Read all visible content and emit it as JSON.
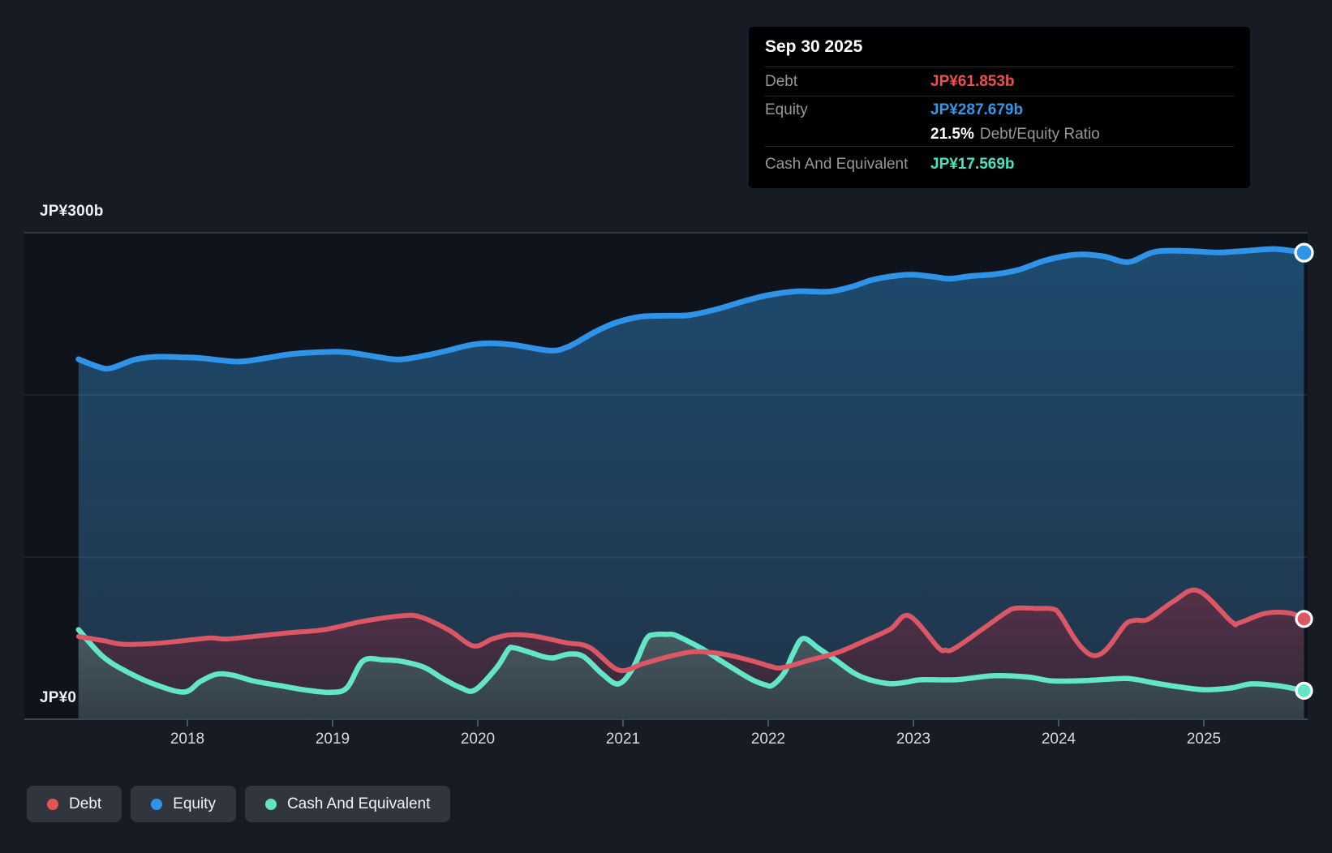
{
  "axis": {
    "y_top_label": "JP¥300b",
    "y_zero_label": "JP¥0",
    "x_labels": [
      "2018",
      "2019",
      "2020",
      "2021",
      "2022",
      "2023",
      "2024",
      "2025"
    ]
  },
  "tooltip": {
    "date": "Sep 30 2025",
    "debt_label": "Debt",
    "debt_value": "JP¥61.853b",
    "equity_label": "Equity",
    "equity_value": "JP¥287.679b",
    "ratio_value": "21.5%",
    "ratio_label": "Debt/Equity Ratio",
    "cash_label": "Cash And Equivalent",
    "cash_value": "JP¥17.569b",
    "colors": {
      "debt": "#f04f4f",
      "equity": "#2f9ae9",
      "cash": "#43e5c0"
    }
  },
  "legend": {
    "items": [
      {
        "label": "Debt",
        "color": "#e35454"
      },
      {
        "label": "Equity",
        "color": "#2f93e8"
      },
      {
        "label": "Cash And Equivalent",
        "color": "#5fe3c2"
      }
    ]
  },
  "chart_data": {
    "type": "area",
    "unit": "JP¥ billions",
    "x_range": [
      2017.25,
      2025.75
    ],
    "ylim": [
      0,
      300
    ],
    "x_ticks": [
      2018,
      2019,
      2020,
      2021,
      2022,
      2023,
      2024,
      2025
    ],
    "grid_values": [
      100,
      200,
      300
    ],
    "legend_position": "bottom-left",
    "series": [
      {
        "name": "Equity",
        "color": "#2f93e8",
        "end_label": "JP¥287.679b",
        "fill_top": "#1d4a6e",
        "fill_bottom": "#213549",
        "points": [
          [
            2017.25,
            222
          ],
          [
            2017.38,
            217.5
          ],
          [
            2017.47,
            216.4
          ],
          [
            2017.64,
            221.8
          ],
          [
            2017.79,
            223.5
          ],
          [
            2017.95,
            223.2
          ],
          [
            2018.09,
            222.7
          ],
          [
            2018.35,
            220.5
          ],
          [
            2018.54,
            222.7
          ],
          [
            2018.72,
            225.2
          ],
          [
            2018.97,
            226.5
          ],
          [
            2019.11,
            226.2
          ],
          [
            2019.3,
            223.5
          ],
          [
            2019.46,
            221.8
          ],
          [
            2019.65,
            224.5
          ],
          [
            2019.8,
            227.5
          ],
          [
            2019.95,
            230.8
          ],
          [
            2020.08,
            231.8
          ],
          [
            2020.25,
            230.8
          ],
          [
            2020.5,
            227.3
          ],
          [
            2020.63,
            230
          ],
          [
            2020.8,
            238.5
          ],
          [
            2020.95,
            244.5
          ],
          [
            2021.12,
            248.2
          ],
          [
            2021.3,
            248.8
          ],
          [
            2021.46,
            249.2
          ],
          [
            2021.64,
            252.7
          ],
          [
            2021.83,
            257.7
          ],
          [
            2022.0,
            261.5
          ],
          [
            2022.2,
            263.9
          ],
          [
            2022.42,
            263.7
          ],
          [
            2022.58,
            266.8
          ],
          [
            2022.72,
            271
          ],
          [
            2022.9,
            273.7
          ],
          [
            2023.0,
            274.1
          ],
          [
            2023.15,
            272.7
          ],
          [
            2023.25,
            271.6
          ],
          [
            2023.4,
            273.3
          ],
          [
            2023.55,
            274.3
          ],
          [
            2023.72,
            277
          ],
          [
            2023.9,
            282.7
          ],
          [
            2024.07,
            286
          ],
          [
            2024.18,
            286.6
          ],
          [
            2024.32,
            285.2
          ],
          [
            2024.48,
            281.9
          ],
          [
            2024.64,
            287.7
          ],
          [
            2024.76,
            288.9
          ],
          [
            2024.95,
            288.5
          ],
          [
            2025.1,
            287.8
          ],
          [
            2025.3,
            288.9
          ],
          [
            2025.5,
            289.9
          ],
          [
            2025.69,
            287.679
          ]
        ]
      },
      {
        "name": "Debt",
        "color": "#db5765",
        "end_label": "JP¥61.853b",
        "fill_top": "#583049",
        "fill_bottom": "#302837",
        "points": [
          [
            2017.25,
            51
          ],
          [
            2017.42,
            48.5
          ],
          [
            2017.56,
            46.2
          ],
          [
            2017.79,
            46.8
          ],
          [
            2017.98,
            48.5
          ],
          [
            2018.16,
            50.1
          ],
          [
            2018.28,
            49.5
          ],
          [
            2018.54,
            51.8
          ],
          [
            2018.72,
            53.5
          ],
          [
            2018.94,
            55.2
          ],
          [
            2019.2,
            60.2
          ],
          [
            2019.46,
            63.6
          ],
          [
            2019.6,
            63.2
          ],
          [
            2019.8,
            55
          ],
          [
            2019.97,
            45.2
          ],
          [
            2020.1,
            49.5
          ],
          [
            2020.22,
            52
          ],
          [
            2020.38,
            51.4
          ],
          [
            2020.6,
            47.3
          ],
          [
            2020.77,
            44.3
          ],
          [
            2020.97,
            30.3
          ],
          [
            2021.14,
            34.3
          ],
          [
            2021.31,
            38.5
          ],
          [
            2021.47,
            41.5
          ],
          [
            2021.6,
            41.2
          ],
          [
            2021.74,
            39.3
          ],
          [
            2021.92,
            35.2
          ],
          [
            2022.02,
            32.5
          ],
          [
            2022.1,
            31.8
          ],
          [
            2022.3,
            36.8
          ],
          [
            2022.48,
            41.2
          ],
          [
            2022.67,
            48.5
          ],
          [
            2022.84,
            55.5
          ],
          [
            2022.97,
            63.8
          ],
          [
            2023.17,
            44.3
          ],
          [
            2023.22,
            42.6
          ],
          [
            2023.28,
            43.5
          ],
          [
            2023.47,
            55.2
          ],
          [
            2023.64,
            66
          ],
          [
            2023.71,
            68.5
          ],
          [
            2023.85,
            68.3
          ],
          [
            2023.96,
            68
          ],
          [
            2024.01,
            64.3
          ],
          [
            2024.12,
            48.5
          ],
          [
            2024.21,
            40.2
          ],
          [
            2024.28,
            39.8
          ],
          [
            2024.35,
            45.2
          ],
          [
            2024.46,
            58.5
          ],
          [
            2024.53,
            61
          ],
          [
            2024.62,
            61.8
          ],
          [
            2024.79,
            72.6
          ],
          [
            2024.96,
            79.3
          ],
          [
            2025.19,
            60.2
          ],
          [
            2025.24,
            59.3
          ],
          [
            2025.42,
            65.2
          ],
          [
            2025.59,
            65.5
          ],
          [
            2025.69,
            61.853
          ]
        ]
      },
      {
        "name": "Cash And Equivalent",
        "color": "#63e6c6",
        "end_label": "JP¥17.569b",
        "fill_top": "#495b62",
        "fill_bottom": "#323f49",
        "points": [
          [
            2017.25,
            55.2
          ],
          [
            2017.42,
            38.5
          ],
          [
            2017.6,
            28.5
          ],
          [
            2017.79,
            21
          ],
          [
            2017.98,
            16.8
          ],
          [
            2018.09,
            23.3
          ],
          [
            2018.2,
            27.7
          ],
          [
            2018.31,
            27.2
          ],
          [
            2018.46,
            23.5
          ],
          [
            2018.65,
            20.5
          ],
          [
            2018.83,
            17.8
          ],
          [
            2018.99,
            16.6
          ],
          [
            2019.1,
            19.5
          ],
          [
            2019.21,
            36
          ],
          [
            2019.35,
            36.6
          ],
          [
            2019.47,
            35.8
          ],
          [
            2019.63,
            32
          ],
          [
            2019.76,
            25
          ],
          [
            2019.88,
            19.5
          ],
          [
            2019.98,
            18
          ],
          [
            2020.13,
            31.8
          ],
          [
            2020.21,
            43
          ],
          [
            2020.25,
            44
          ],
          [
            2020.36,
            41.2
          ],
          [
            2020.45,
            38.6
          ],
          [
            2020.52,
            37.8
          ],
          [
            2020.63,
            40.2
          ],
          [
            2020.73,
            38.5
          ],
          [
            2020.86,
            27.7
          ],
          [
            2020.97,
            21.8
          ],
          [
            2021.07,
            31.8
          ],
          [
            2021.16,
            49.3
          ],
          [
            2021.22,
            52.2
          ],
          [
            2021.3,
            52.3
          ],
          [
            2021.36,
            51.8
          ],
          [
            2021.51,
            45.2
          ],
          [
            2021.59,
            41
          ],
          [
            2021.66,
            36.8
          ],
          [
            2021.78,
            30.1
          ],
          [
            2021.89,
            24.3
          ],
          [
            2021.98,
            21.2
          ],
          [
            2022.03,
            21
          ],
          [
            2022.11,
            28.5
          ],
          [
            2022.17,
            40.2
          ],
          [
            2022.24,
            49.8
          ],
          [
            2022.35,
            43.5
          ],
          [
            2022.46,
            36.8
          ],
          [
            2022.59,
            28.5
          ],
          [
            2022.7,
            24.3
          ],
          [
            2022.84,
            21.9
          ],
          [
            2022.95,
            22.8
          ],
          [
            2023.05,
            24.3
          ],
          [
            2023.3,
            24.4
          ],
          [
            2023.55,
            26.8
          ],
          [
            2023.79,
            26
          ],
          [
            2023.96,
            23.6
          ],
          [
            2024.2,
            23.9
          ],
          [
            2024.47,
            25.1
          ],
          [
            2024.65,
            22.5
          ],
          [
            2024.81,
            20.2
          ],
          [
            2025.0,
            18.2
          ],
          [
            2025.19,
            19.3
          ],
          [
            2025.33,
            21.8
          ],
          [
            2025.52,
            20.5
          ],
          [
            2025.69,
            17.569
          ]
        ]
      }
    ]
  }
}
